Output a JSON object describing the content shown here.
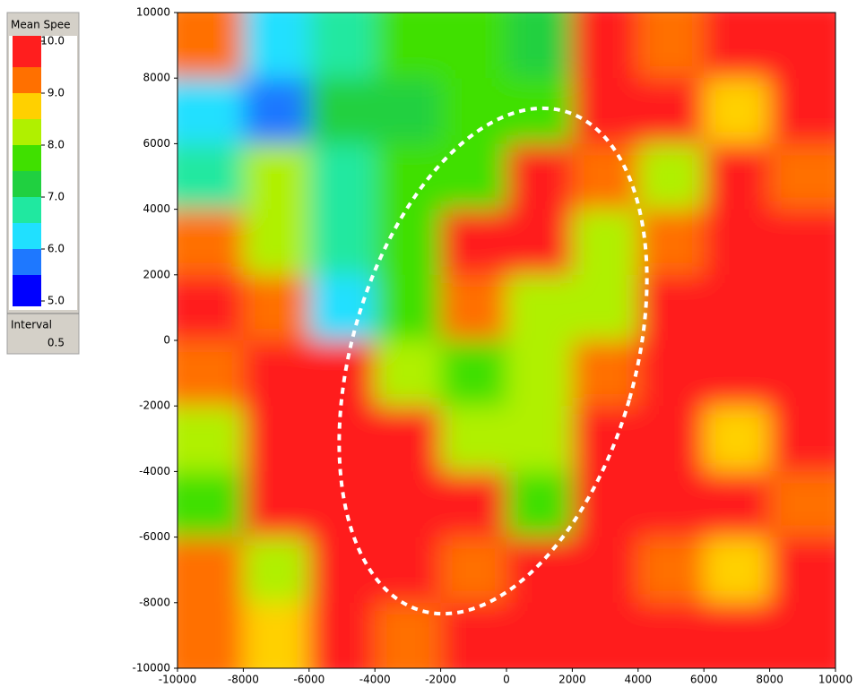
{
  "chart_data": {
    "type": "heatmap",
    "x": [
      -9000,
      -7000,
      -5000,
      -3000,
      -1000,
      1000,
      3000,
      5000,
      7000,
      9000
    ],
    "y": [
      9000,
      7000,
      5000,
      3000,
      1000,
      -1000,
      -3000,
      -5000,
      -7000,
      -9000
    ],
    "z": [
      [
        9,
        6,
        6.5,
        7.5,
        7.5,
        7,
        10,
        9,
        10,
        10
      ],
      [
        6,
        5.5,
        7,
        7,
        7.5,
        7.5,
        10,
        10,
        8.5,
        10
      ],
      [
        6.5,
        8,
        6.5,
        7.5,
        7.5,
        10,
        9,
        8,
        10,
        9
      ],
      [
        9,
        8,
        6.5,
        7.5,
        10,
        10,
        8,
        9,
        10,
        10
      ],
      [
        10,
        9,
        6,
        7.5,
        9,
        8,
        8,
        10,
        10,
        10
      ],
      [
        9,
        10,
        9.5,
        8,
        7.5,
        8,
        9,
        10,
        10,
        9.5
      ],
      [
        8,
        9.5,
        10,
        10,
        8,
        8,
        10,
        10,
        8.5,
        10
      ],
      [
        7.5,
        10,
        10,
        10,
        9.5,
        7.5,
        10,
        10,
        10,
        9
      ],
      [
        9,
        8,
        10,
        10,
        9,
        9.5,
        10,
        9,
        8.5,
        10
      ],
      [
        9,
        8.5,
        9.5,
        9,
        10,
        10,
        10,
        10,
        9.5,
        10
      ]
    ],
    "xlim": [
      -10000,
      10000
    ],
    "ylim": [
      -10000,
      10000
    ],
    "xticks": [
      -10000,
      -8000,
      -6000,
      -4000,
      -2000,
      0,
      2000,
      4000,
      6000,
      8000,
      10000
    ],
    "yticks": [
      -10000,
      -8000,
      -6000,
      -4000,
      -2000,
      0,
      2000,
      4000,
      6000,
      8000,
      10000
    ],
    "colorbar": {
      "title": "Mean Spee",
      "range": [
        5,
        10
      ],
      "ticks": [
        {
          "value": 5,
          "label": "5.0"
        },
        {
          "value": 6,
          "label": "6.0"
        },
        {
          "value": 7,
          "label": "7.0"
        },
        {
          "value": 8,
          "label": "8.0"
        },
        {
          "value": 9,
          "label": "9.0"
        },
        {
          "value": 10,
          "label": "10.0"
        }
      ],
      "interval_label": "Interval",
      "interval": 0.5,
      "colors": [
        "#0000ff",
        "#1e78ff",
        "#20e0ff",
        "#20e8a0",
        "#20d040",
        "#40e000",
        "#b0f000",
        "#ffd000",
        "#ff7000",
        "#ff1e1e"
      ]
    }
  }
}
